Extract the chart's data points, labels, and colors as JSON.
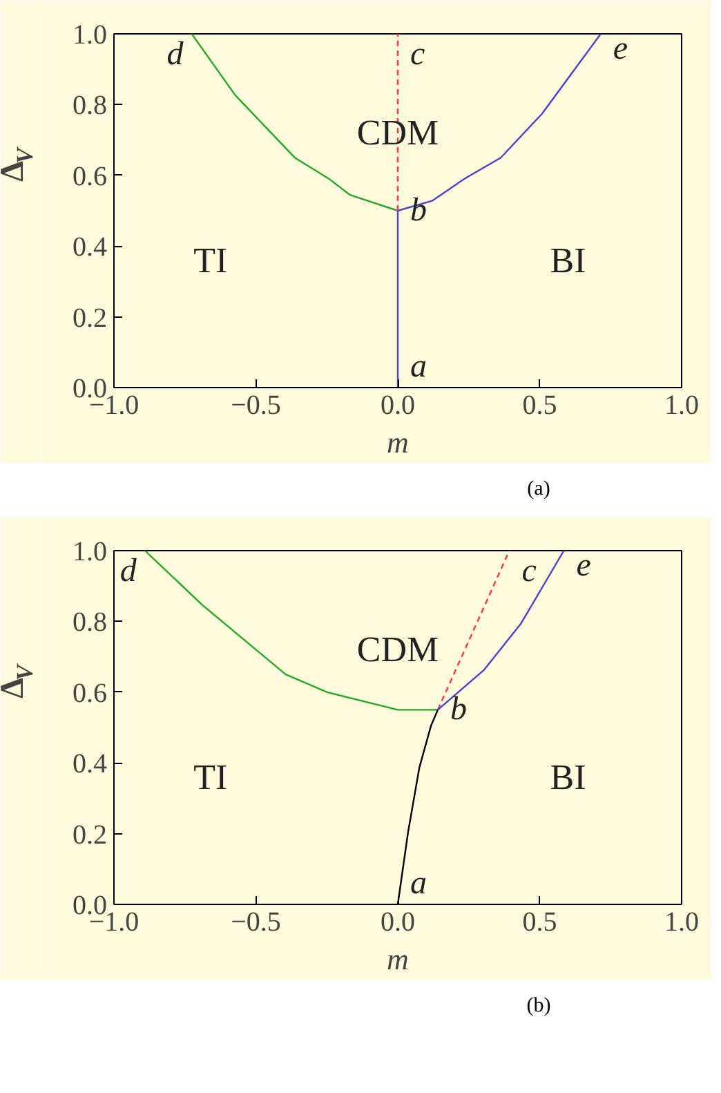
{
  "chart_data": [
    {
      "type": "line",
      "xlabel": "m",
      "ylabel": "Δ$_{V}$",
      "xlim": [
        -1,
        1
      ],
      "ylim": [
        0,
        1
      ],
      "xticks": [
        {
          "value": -1,
          "label": "−1.0"
        },
        {
          "value": -0.5,
          "label": "−0.5"
        },
        {
          "value": 0,
          "label": "0.0"
        },
        {
          "value": 0.5,
          "label": "0.5"
        },
        {
          "value": 1,
          "label": "1.0"
        }
      ],
      "yticks": [
        {
          "value": 0,
          "label": "0.0"
        },
        {
          "value": 0.2,
          "label": "0.2"
        },
        {
          "value": 0.4,
          "label": "0.4"
        },
        {
          "value": 0.6,
          "label": "0.6"
        },
        {
          "value": 0.8,
          "label": "0.8"
        },
        {
          "value": 1,
          "label": "1.0"
        }
      ],
      "grid": false,
      "series": [
        {
          "color": "#22aa22",
          "line_style": "solid",
          "x": [
            -0.726,
            -0.573,
            -0.363,
            -0.242,
            -0.169,
            0
          ],
          "values": [
            1.0,
            0.827,
            0.65,
            0.59,
            0.545,
            0.5
          ]
        },
        {
          "color": "#4444cc",
          "line_style": "solid",
          "x": [
            0,
            0.121,
            0.234,
            0.363,
            0.508,
            0.715
          ],
          "values": [
            0.5,
            0.528,
            0.59,
            0.65,
            0.774,
            1.0
          ]
        },
        {
          "color": "#4444cc",
          "line_style": "solid",
          "x": [
            0,
            0
          ],
          "values": [
            0,
            0.5
          ]
        },
        {
          "color": "#ff3344",
          "line_style": "dashed",
          "x": [
            0,
            0
          ],
          "values": [
            0.5,
            1.0
          ]
        }
      ],
      "annotations": [
        {
          "text": "a",
          "x": 0,
          "y": 0
        },
        {
          "text": "b",
          "x": 0,
          "y": 0.5
        },
        {
          "text": "c",
          "x": 0,
          "y": 1
        },
        {
          "text": "d",
          "x": -0.726,
          "y": 1
        },
        {
          "text": "e",
          "x": 0.715,
          "y": 1
        },
        "CDM",
        "TI",
        "BI",
        "(a)"
      ]
    },
    {
      "type": "line",
      "xlabel": "m",
      "ylabel": "Δ$_{V}$",
      "xlim": [
        -1,
        1
      ],
      "ylim": [
        0,
        1
      ],
      "xticks": [
        {
          "value": -1,
          "label": "−1.0"
        },
        {
          "value": -0.5,
          "label": "−0.5"
        },
        {
          "value": 0,
          "label": "0.0"
        },
        {
          "value": 0.5,
          "label": "0.5"
        },
        {
          "value": 1,
          "label": "1.0"
        }
      ],
      "yticks": [
        {
          "value": 0,
          "label": "0.0"
        },
        {
          "value": 0.2,
          "label": "0.2"
        },
        {
          "value": 0.4,
          "label": "0.4"
        },
        {
          "value": 0.6,
          "label": "0.6"
        },
        {
          "value": 0.8,
          "label": "0.8"
        },
        {
          "value": 1,
          "label": "1.0"
        }
      ],
      "grid": false,
      "series": [
        {
          "color": "#22aa22",
          "line_style": "solid",
          "x": [
            -0.891,
            -0.688,
            -0.395,
            -0.249,
            0,
            0.141
          ],
          "values": [
            1.0,
            0.846,
            0.65,
            0.6,
            0.55,
            0.55
          ]
        },
        {
          "color": "#000000",
          "line_style": "solid",
          "x": [
            0,
            0.036,
            0.076,
            0.117,
            0.141
          ],
          "values": [
            0,
            0.203,
            0.387,
            0.505,
            0.55
          ]
        },
        {
          "color": "#ff3344",
          "line_style": "dashed",
          "x": [
            0.141,
            0.393
          ],
          "values": [
            0.55,
            1.0
          ]
        },
        {
          "color": "#4444cc",
          "line_style": "solid",
          "x": [
            0.141,
            0.304,
            0.434,
            0.585
          ],
          "values": [
            0.55,
            0.663,
            0.794,
            1.0
          ]
        }
      ],
      "annotations": [
        {
          "text": "a",
          "x": 0,
          "y": 0
        },
        {
          "text": "b",
          "x": 0.141,
          "y": 0.55
        },
        {
          "text": "c",
          "x": 0.393,
          "y": 1
        },
        {
          "text": "d",
          "x": -0.891,
          "y": 1
        },
        {
          "text": "e",
          "x": 0.585,
          "y": 1
        },
        "CDM",
        "TI",
        "BI",
        "(b)"
      ]
    }
  ]
}
